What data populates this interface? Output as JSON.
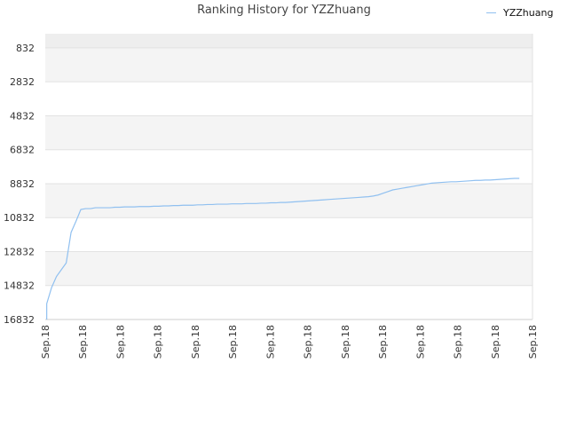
{
  "chart_data": {
    "type": "line",
    "title": "Ranking History for YZZhuang",
    "xlabel": "",
    "ylabel": "",
    "y_reversed": true,
    "ylim": [
      16832,
      0
    ],
    "y_ticks": [
      832,
      2832,
      4832,
      6832,
      8832,
      10832,
      12832,
      14832,
      16832
    ],
    "y_tick_labels": [
      "832",
      "2832",
      "4832",
      "6832",
      "8832",
      "10832",
      "12832",
      "14832",
      "16832"
    ],
    "x_tick_labels": [
      "Sep.18",
      "Sep.18",
      "Sep.18",
      "Sep.18",
      "Sep.18",
      "Sep.18",
      "Sep.18",
      "Sep.18",
      "Sep.18",
      "Sep.18",
      "Sep.18",
      "Sep.18",
      "Sep.18",
      "Sep.18"
    ],
    "grid": true,
    "legend_position": "top-right",
    "series": [
      {
        "name": "YZZhuang",
        "color": "#90c0f0",
        "x": [
          0.0,
          0.0,
          0.01,
          0.02,
          0.04,
          0.05,
          0.06,
          0.07,
          0.08,
          0.09,
          0.1,
          0.11,
          0.12,
          0.13,
          0.14,
          0.15,
          0.16,
          0.17,
          0.18,
          0.19,
          0.2,
          0.21,
          0.22,
          0.23,
          0.24,
          0.25,
          0.26,
          0.27,
          0.28,
          0.29,
          0.3,
          0.31,
          0.32,
          0.33,
          0.34,
          0.35,
          0.36,
          0.37,
          0.38,
          0.39,
          0.4,
          0.41,
          0.42,
          0.43,
          0.44,
          0.45,
          0.46,
          0.47,
          0.48,
          0.49,
          0.5,
          0.51,
          0.52,
          0.53,
          0.54,
          0.55,
          0.56,
          0.57,
          0.58,
          0.59,
          0.6,
          0.61,
          0.62,
          0.63,
          0.64,
          0.65,
          0.66,
          0.67,
          0.68,
          0.69,
          0.7,
          0.71,
          0.72,
          0.73,
          0.74,
          0.75,
          0.76,
          0.77,
          0.78,
          0.79,
          0.8,
          0.81,
          0.82,
          0.83,
          0.84,
          0.85,
          0.86,
          0.87,
          0.88,
          0.89,
          0.9,
          0.91,
          0.92,
          0.93,
          0.94,
          0.95,
          0.96,
          0.97
        ],
        "values": [
          16832,
          15900,
          14950,
          14300,
          13500,
          11700,
          11050,
          10350,
          10300,
          10300,
          10250,
          10250,
          10250,
          10250,
          10220,
          10220,
          10200,
          10200,
          10200,
          10180,
          10180,
          10180,
          10160,
          10160,
          10140,
          10140,
          10120,
          10120,
          10100,
          10100,
          10100,
          10080,
          10080,
          10060,
          10060,
          10040,
          10040,
          10040,
          10020,
          10020,
          10020,
          10000,
          10000,
          10000,
          9980,
          9980,
          9960,
          9960,
          9940,
          9940,
          9920,
          9900,
          9880,
          9860,
          9840,
          9820,
          9800,
          9780,
          9760,
          9740,
          9720,
          9700,
          9680,
          9660,
          9640,
          9620,
          9600,
          9560,
          9500,
          9400,
          9300,
          9200,
          9150,
          9100,
          9050,
          9000,
          8950,
          8900,
          8850,
          8800,
          8780,
          8760,
          8740,
          8720,
          8720,
          8700,
          8680,
          8660,
          8640,
          8640,
          8620,
          8620,
          8600,
          8580,
          8560,
          8540,
          8520,
          8520
        ]
      }
    ]
  }
}
